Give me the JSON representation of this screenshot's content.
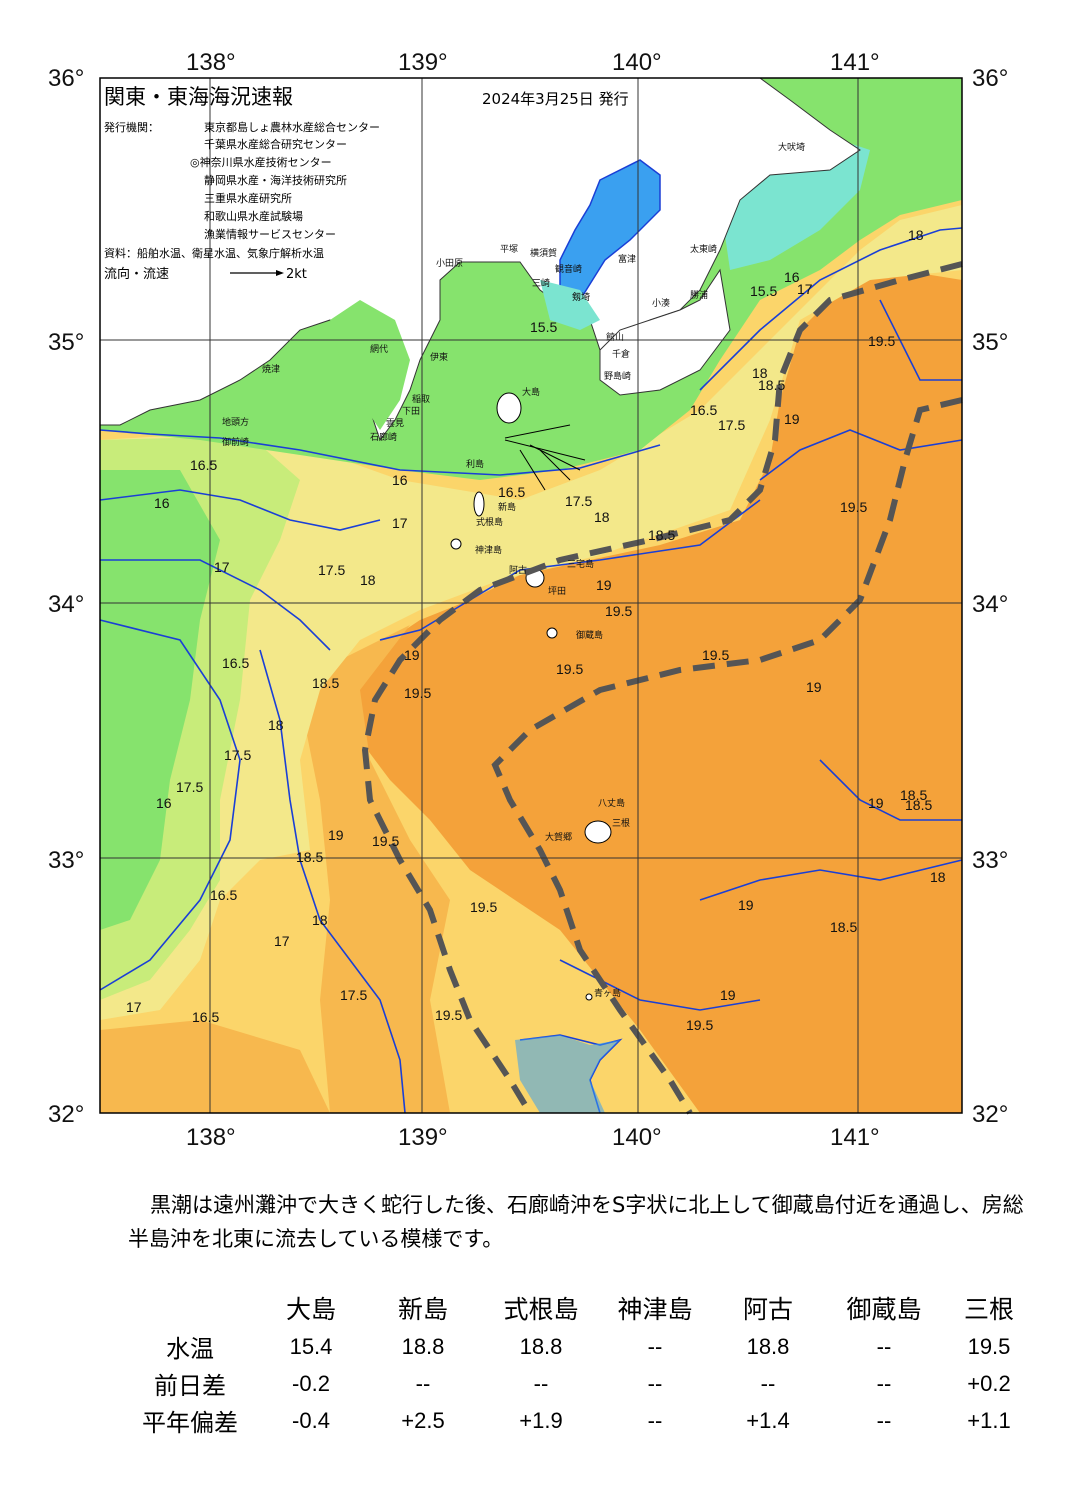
{
  "header": {
    "title": "関東・東海海況速報",
    "date": "2024年3月25日 発行",
    "issuer_label": "発行機関：",
    "issuers": [
      "東京都島しょ農林水産総合センター",
      "千葉県水産総合研究センター",
      "◎神奈川県水産技術センター",
      "静岡県水産・海洋技術研究所",
      "三重県水産研究所",
      "和歌山県水産試験場",
      "漁業情報サービスセンター"
    ],
    "source": "資料：船舶水温、衛星水温、気象庁解析水温",
    "legend_label": "流向・流速",
    "legend_speed": "2kt"
  },
  "axes": {
    "lon_labels": [
      "138°",
      "139°",
      "140°",
      "141°"
    ],
    "lat_labels": [
      "36°",
      "35°",
      "34°",
      "33°",
      "32°"
    ]
  },
  "palette": {
    "water_warmest": "#f4a23a",
    "water_warm": "#f7b84e",
    "water_mid": "#fbd56a",
    "water_cool": "#f3e88a",
    "water_cooler": "#c8ec7a",
    "water_cold": "#86e36d",
    "bay_cyan": "#7be4d0",
    "bay_blue": "#3aa0f0",
    "isotherm": "#1a3fd6",
    "kuroshio_axis": "#555555",
    "land": "#ffffff"
  },
  "places": [
    "大吠埼",
    "太東崎",
    "小湊",
    "勝浦",
    "館山",
    "千倉",
    "野島崎",
    "富津",
    "横須賀",
    "観音崎",
    "剱埼",
    "三崎",
    "平塚",
    "小田原",
    "網代",
    "伊東",
    "稲取",
    "下田",
    "石廊崎",
    "雲見",
    "御前崎",
    "地頭方",
    "焼津",
    "大島",
    "利島",
    "新島",
    "式根島",
    "神津島",
    "三宅島",
    "阿古",
    "坪田",
    "御蔵島",
    "八丈島",
    "三根",
    "大賀郷",
    "青ヶ島"
  ],
  "isotherm_labels": [
    "15.5",
    "16",
    "16.5",
    "17",
    "17.5",
    "18",
    "18.5",
    "19",
    "19.5",
    "15.5",
    "16",
    "16.5",
    "17",
    "17.5",
    "18",
    "18.5",
    "19",
    "19.5",
    "16.5",
    "17",
    "18",
    "17.5",
    "16",
    "18.5",
    "19",
    "19.5",
    "18.5",
    "19",
    "19.5",
    "18.5",
    "17.5",
    "16.5",
    "17.5",
    "18",
    "17",
    "16",
    "16.5",
    "19.5",
    "19.5",
    "19.5",
    "19",
    "19.5",
    "19.5",
    "19",
    "18.5",
    "18",
    "18.5",
    "19",
    "19.5",
    "19",
    "18",
    "18",
    "17.5",
    "16.5",
    "17"
  ],
  "summary": "黒潮は遠州灘沖で大きく蛇行した後、石廊崎沖をS字状に北上して御蔵島付近を通過し、房総半島沖を北東に流去している模様です。",
  "table": {
    "columns": [
      "大島",
      "新島",
      "式根島",
      "神津島",
      "阿古",
      "御蔵島",
      "三根"
    ],
    "rows": [
      {
        "label": "水温",
        "values": [
          "15.4",
          "18.8",
          "18.8",
          "--",
          "18.8",
          "--",
          "19.5"
        ]
      },
      {
        "label": "前日差",
        "values": [
          "-0.2",
          "--",
          "--",
          "--",
          "--",
          "--",
          "+0.2"
        ]
      },
      {
        "label": "平年偏差",
        "values": [
          "-0.4",
          "+2.5",
          "+1.9",
          "--",
          "+1.4",
          "--",
          "+1.1"
        ]
      }
    ]
  }
}
